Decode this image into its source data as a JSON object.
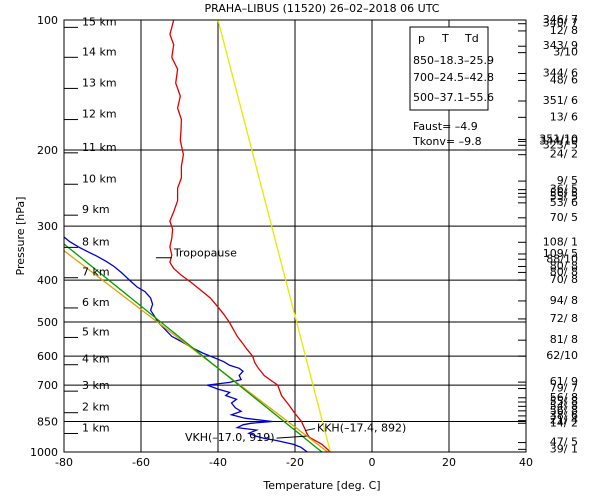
{
  "chart_data": {
    "type": "line",
    "title": "PRAHA–LIBUS (11520)    26–02–2018   06   UTC",
    "xlabel": "Temperature [deg. C]",
    "ylabel": "Pressure [hPa]",
    "xlim": [
      -80,
      40
    ],
    "ylim": [
      1000,
      100
    ],
    "y_scale": "log",
    "grid": true,
    "x_ticks": [
      "-80",
      "-60",
      "-40",
      "-20",
      "0",
      "20",
      "40"
    ],
    "x_tick_values": [
      -80,
      -60,
      -40,
      -20,
      0,
      20,
      40
    ],
    "y_ticks": [
      "100",
      "200",
      "300",
      "400",
      "500",
      "600",
      "700",
      "850",
      "1000"
    ],
    "y_tick_values": [
      100,
      200,
      300,
      400,
      500,
      600,
      700,
      850,
      1000
    ],
    "altitude_labels": [
      {
        "label": "15 km",
        "p": 104
      },
      {
        "label": "14 km",
        "p": 122
      },
      {
        "label": "13 km",
        "p": 144
      },
      {
        "label": "12 km",
        "p": 170
      },
      {
        "label": "11 km",
        "p": 203
      },
      {
        "label": "10 km",
        "p": 240
      },
      {
        "label": "9 km",
        "p": 283
      },
      {
        "label": "8 km",
        "p": 336
      },
      {
        "label": "7 km",
        "p": 395
      },
      {
        "label": "6 km",
        "p": 464
      },
      {
        "label": "5 km",
        "p": 543
      },
      {
        "label": "4 km",
        "p": 628
      },
      {
        "label": "3 km",
        "p": 723
      },
      {
        "label": "2 km",
        "p": 811
      },
      {
        "label": "1 km",
        "p": 906
      }
    ],
    "info_box": {
      "header": [
        "p",
        "T",
        "Td"
      ],
      "rows": [
        "850–18.3–25.9",
        "700–24.5–42.8",
        "500–37.1–55.6"
      ]
    },
    "indices": [
      "Faust= –4.9",
      "Tkonv= –9.8"
    ],
    "annotations": {
      "tropopause": {
        "text": "Tropopause",
        "t": -52.5,
        "p": 355
      },
      "vkh": {
        "text": "VKH(–17.0, 919)",
        "t": -17.0,
        "p": 919
      },
      "kkh": {
        "text": "KKH(–17.4, 892)",
        "t": -17.4,
        "p": 892
      }
    },
    "wind_labels": [
      {
        "text": "346/ 7",
        "p": 100
      },
      {
        "text": "340/ 7",
        "p": 102
      },
      {
        "text": "12/ 8",
        "p": 106
      },
      {
        "text": "343/ 9",
        "p": 115
      },
      {
        "text": "3/10",
        "p": 119
      },
      {
        "text": "344/ 6",
        "p": 133
      },
      {
        "text": "48/ 6",
        "p": 138
      },
      {
        "text": "351/ 6",
        "p": 154
      },
      {
        "text": "13/ 6",
        "p": 168
      },
      {
        "text": "351/10",
        "p": 189
      },
      {
        "text": "344/10",
        "p": 191
      },
      {
        "text": "323/ 5",
        "p": 195
      },
      {
        "text": "24/ 2",
        "p": 205
      },
      {
        "text": "9/ 5",
        "p": 236
      },
      {
        "text": "36/ 5",
        "p": 247
      },
      {
        "text": "56/ 5",
        "p": 252
      },
      {
        "text": "55/ 5",
        "p": 257
      },
      {
        "text": "53/ 6",
        "p": 265
      },
      {
        "text": "70/ 5",
        "p": 287
      },
      {
        "text": "108/ 1",
        "p": 327
      },
      {
        "text": "109/ 5",
        "p": 348
      },
      {
        "text": "88/10",
        "p": 358
      },
      {
        "text": "80/ 8",
        "p": 372
      },
      {
        "text": "80/ 8",
        "p": 384
      },
      {
        "text": "70/ 8",
        "p": 400
      },
      {
        "text": "94/ 8",
        "p": 447
      },
      {
        "text": "72/ 8",
        "p": 492
      },
      {
        "text": "81/ 8",
        "p": 551
      },
      {
        "text": "62/10",
        "p": 600
      },
      {
        "text": "61/ 9",
        "p": 689
      },
      {
        "text": "79/ 7",
        "p": 713
      },
      {
        "text": "56/ 8",
        "p": 749
      },
      {
        "text": "55/ 8",
        "p": 766
      },
      {
        "text": "54/ 8",
        "p": 784
      },
      {
        "text": "56/ 8",
        "p": 803
      },
      {
        "text": "38/ 6",
        "p": 825
      },
      {
        "text": "21/ 4",
        "p": 846
      },
      {
        "text": "14/ 2",
        "p": 858
      },
      {
        "text": "47/ 5",
        "p": 951
      },
      {
        "text": "39/ 1",
        "p": 986
      }
    ],
    "series": [
      {
        "color": "#e00000",
        "points": [
          [
            -10.8,
            1000
          ],
          [
            -13,
            960
          ],
          [
            -16.2,
            925
          ],
          [
            -16.8,
            910
          ],
          [
            -18.3,
            850
          ],
          [
            -20.2,
            810
          ],
          [
            -21.5,
            780
          ],
          [
            -23.5,
            740
          ],
          [
            -24.5,
            700
          ],
          [
            -25.5,
            690
          ],
          [
            -28,
            665
          ],
          [
            -29.5,
            640
          ],
          [
            -30.5,
            620
          ],
          [
            -31,
            600
          ],
          [
            -32.5,
            578
          ],
          [
            -33.5,
            562
          ],
          [
            -35,
            540
          ],
          [
            -37.1,
            500
          ],
          [
            -38.5,
            480
          ],
          [
            -40,
            462
          ],
          [
            -42,
            440
          ],
          [
            -44.5,
            422
          ],
          [
            -47,
            405
          ],
          [
            -49.5,
            390
          ],
          [
            -51.5,
            376
          ],
          [
            -52.5,
            364
          ],
          [
            -52,
            350
          ],
          [
            -52.5,
            335
          ],
          [
            -52,
            320
          ],
          [
            -51.8,
            305
          ],
          [
            -52.5,
            292
          ],
          [
            -51.5,
            278
          ],
          [
            -50.5,
            262
          ],
          [
            -50.5,
            245
          ],
          [
            -49.5,
            232
          ],
          [
            -49.5,
            218
          ],
          [
            -49,
            205
          ],
          [
            -49.8,
            190
          ],
          [
            -49.6,
            180
          ],
          [
            -49.5,
            170
          ],
          [
            -50.5,
            160
          ],
          [
            -49.8,
            150
          ],
          [
            -51,
            140
          ],
          [
            -50.5,
            130
          ],
          [
            -52,
            122
          ],
          [
            -51.5,
            114
          ],
          [
            -52.5,
            108
          ],
          [
            -52,
            104
          ],
          [
            -51.5,
            100
          ]
        ]
      },
      {
        "color": "#0000d0",
        "points": [
          [
            -16.8,
            1000
          ],
          [
            -18.5,
            975
          ],
          [
            -20.5,
            960
          ],
          [
            -25,
            940
          ],
          [
            -28,
            930
          ],
          [
            -30,
            919
          ],
          [
            -32,
            905
          ],
          [
            -30,
            890
          ],
          [
            -35,
            878
          ],
          [
            -33.5,
            865
          ],
          [
            -31.5,
            858
          ],
          [
            -25.9,
            850
          ],
          [
            -33,
            835
          ],
          [
            -36.5,
            820
          ],
          [
            -34,
            805
          ],
          [
            -35.5,
            790
          ],
          [
            -36.5,
            770
          ],
          [
            -35.2,
            755
          ],
          [
            -38,
            740
          ],
          [
            -37,
            728
          ],
          [
            -40,
            715
          ],
          [
            -42.8,
            700
          ],
          [
            -37,
            690
          ],
          [
            -34,
            680
          ],
          [
            -34.5,
            665
          ],
          [
            -33.5,
            650
          ],
          [
            -34.5,
            640
          ],
          [
            -37,
            630
          ],
          [
            -38.5,
            618
          ],
          [
            -41,
            605
          ],
          [
            -44,
            590
          ],
          [
            -46.5,
            575
          ],
          [
            -49.5,
            555
          ],
          [
            -52,
            540
          ],
          [
            -55.6,
            500
          ],
          [
            -56.5,
            485
          ],
          [
            -57.5,
            470
          ],
          [
            -57,
            455
          ],
          [
            -57.5,
            440
          ],
          [
            -59,
            425
          ],
          [
            -61,
            415
          ],
          [
            -63,
            400
          ],
          [
            -65,
            385
          ],
          [
            -67,
            372
          ],
          [
            -69,
            362
          ],
          [
            -71.5,
            352
          ],
          [
            -73.5,
            345
          ],
          [
            -76,
            336
          ],
          [
            -78.5,
            326
          ],
          [
            -80,
            318
          ]
        ]
      },
      {
        "color": "#e0a000",
        "points": [
          [
            -11.5,
            1000
          ],
          [
            -80,
            342
          ]
        ]
      },
      {
        "color": "#e8e800",
        "points": [
          [
            -10.8,
            1000
          ],
          [
            -40,
            100
          ]
        ]
      },
      {
        "color": "#00a000",
        "points": [
          [
            -13,
            1000
          ],
          [
            -80,
            330
          ]
        ]
      }
    ]
  }
}
